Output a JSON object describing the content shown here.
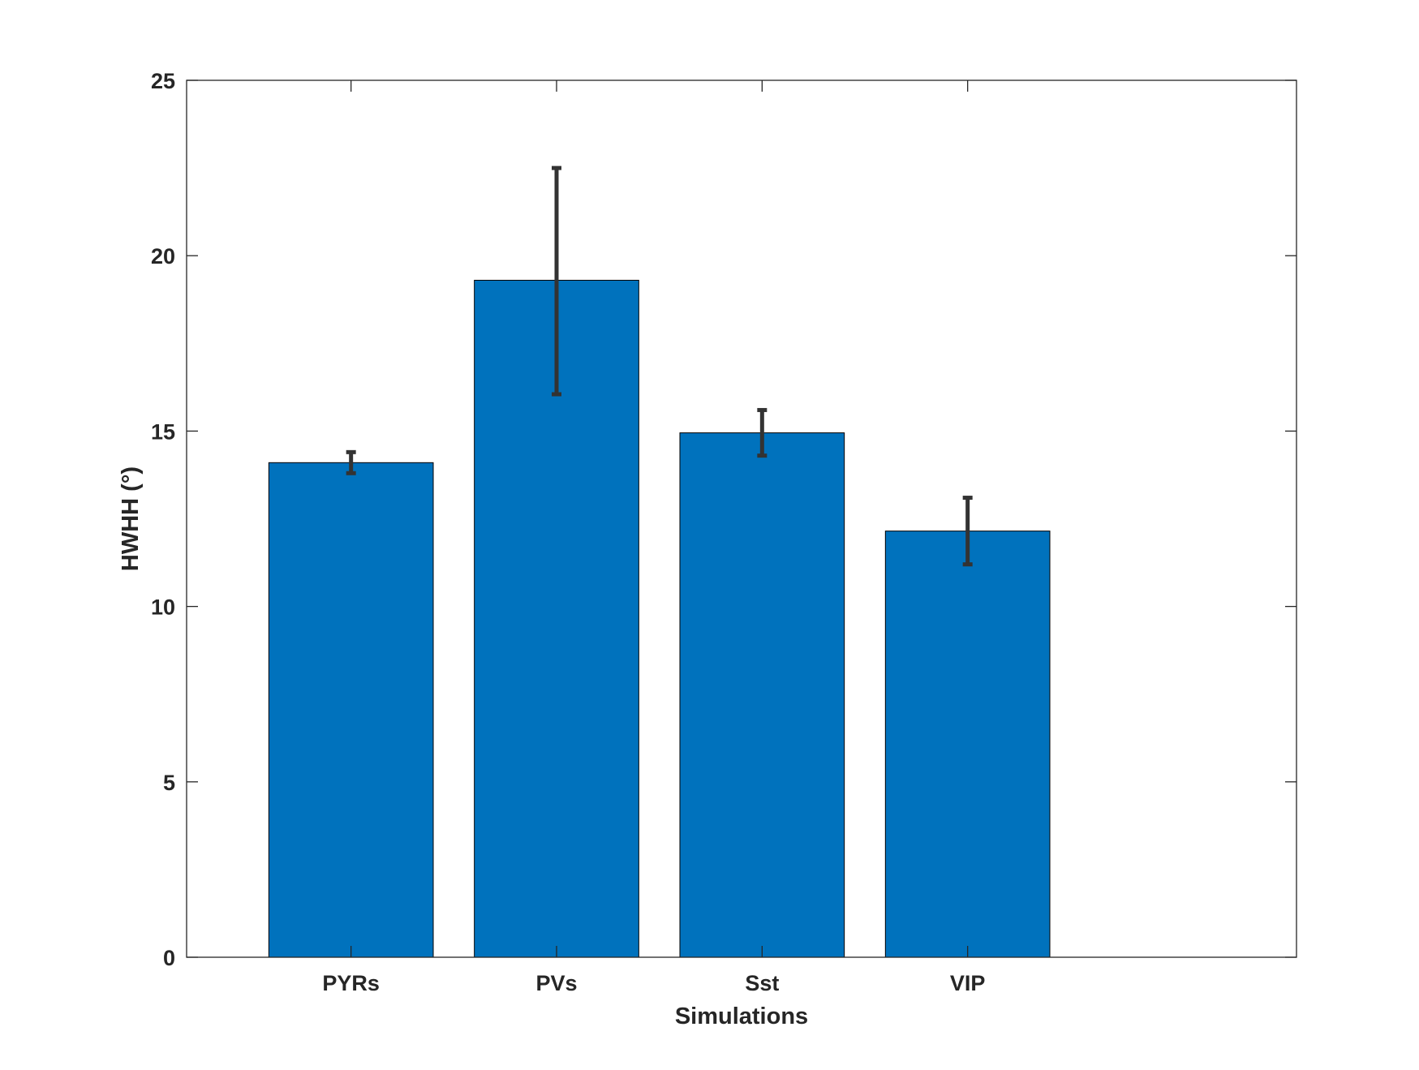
{
  "chart_data": {
    "type": "bar",
    "title": "",
    "xlabel": "Simulations",
    "ylabel": "HWHH (°)",
    "categories": [
      "PYRs",
      "PVs",
      "Sst",
      "VIP"
    ],
    "values": [
      14.1,
      19.3,
      14.95,
      12.15
    ],
    "error_low": [
      13.8,
      16.05,
      14.3,
      11.2
    ],
    "error_high": [
      14.4,
      22.5,
      15.6,
      13.1
    ],
    "ylim": [
      0,
      25
    ],
    "yticks": [
      0,
      5,
      10,
      15,
      20,
      25
    ],
    "xlim": [
      0.2,
      5.6
    ],
    "grid": false,
    "legend": "none",
    "colors": {
      "bar": "#0072BD",
      "bar_edge": "#000000",
      "error_bar": "#333333",
      "axis": "#262626"
    }
  }
}
